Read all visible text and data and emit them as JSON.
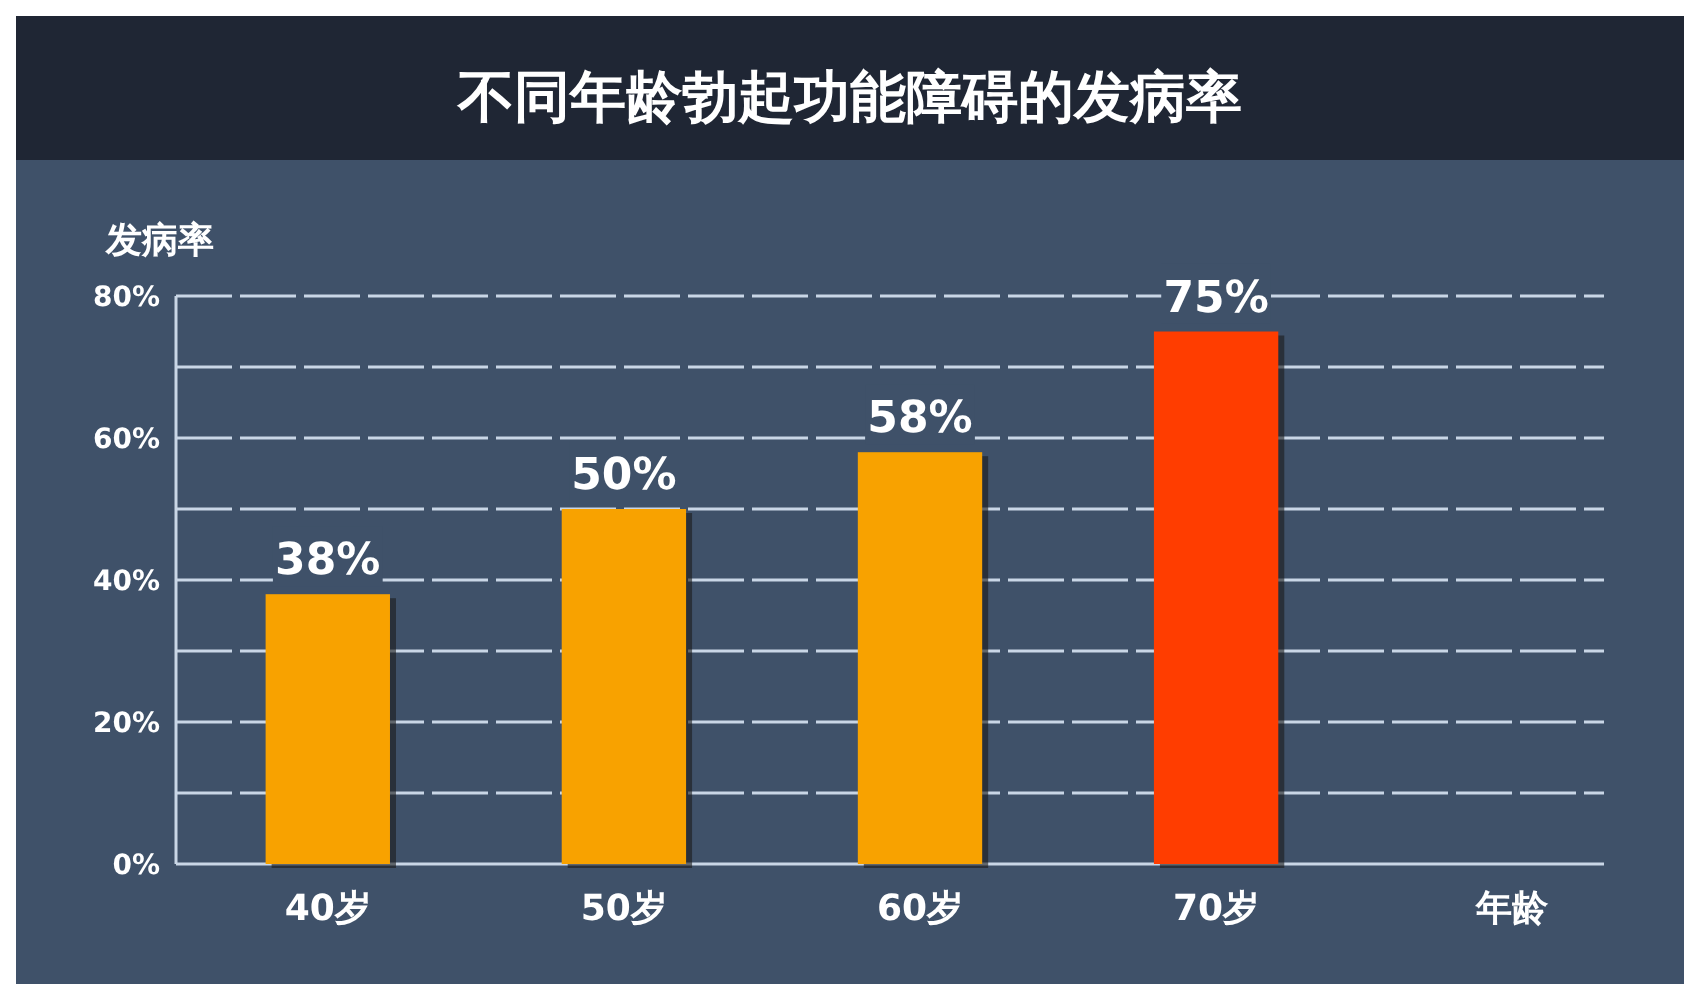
{
  "chart_data": {
    "type": "bar",
    "title": "不同年龄勃起功能障碍的发病率",
    "ylabel": "发病率",
    "xlabel": "年龄",
    "categories": [
      "40岁",
      "50岁",
      "60岁",
      "70岁"
    ],
    "values": [
      38,
      50,
      58,
      75
    ],
    "colors": [
      "#f8a200",
      "#f8a200",
      "#f8a200",
      "#ff3d00"
    ],
    "value_labels": [
      "38%",
      "50%",
      "58%",
      "75%"
    ],
    "ylim": [
      0,
      80
    ],
    "yticks": [
      {
        "value": 0,
        "label": "0%"
      },
      {
        "value": 10,
        "label": null
      },
      {
        "value": 20,
        "label": "20%"
      },
      {
        "value": 30,
        "label": null
      },
      {
        "value": 40,
        "label": "40%"
      },
      {
        "value": 50,
        "label": null
      },
      {
        "value": 60,
        "label": "60%"
      },
      {
        "value": 70,
        "label": null
      },
      {
        "value": 80,
        "label": "80%"
      }
    ],
    "grid": "y"
  }
}
